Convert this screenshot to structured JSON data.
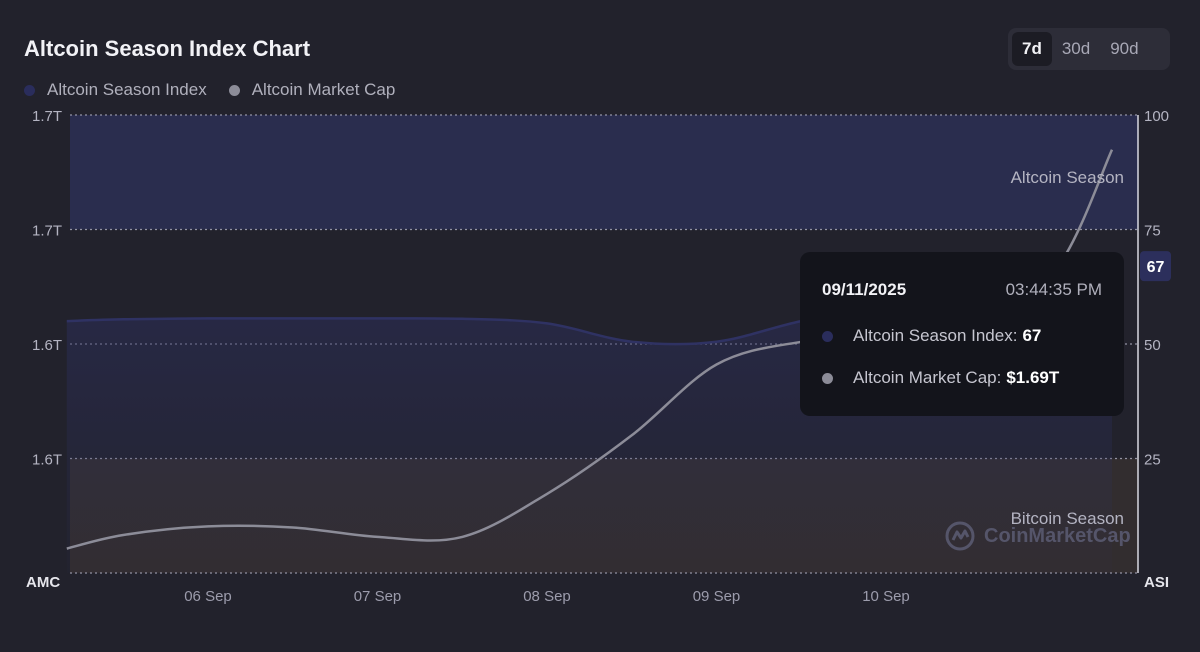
{
  "title": "Altcoin Season Index Chart",
  "range_tabs": [
    {
      "label": "7d",
      "active": true
    },
    {
      "label": "30d",
      "active": false
    },
    {
      "label": "90d",
      "active": false
    }
  ],
  "legend": [
    {
      "label": "Altcoin Season Index",
      "color": "#2a2d5c"
    },
    {
      "label": "Altcoin Market Cap",
      "color": "#8c8c98"
    }
  ],
  "tooltip": {
    "date": "09/11/2025",
    "time": "03:44:35 PM",
    "index_label": "Altcoin Season Index:",
    "index_value": "67",
    "cap_label": "Altcoin Market Cap:",
    "cap_value": "$1.69T"
  },
  "watermark": "CoinMarketCap",
  "chart_data": {
    "type": "line",
    "x": [
      "2025-09-05 04:00",
      "2025-09-05 12:00",
      "2025-09-06 00:00",
      "2025-09-06 12:00",
      "2025-09-07 00:00",
      "2025-09-07 12:00",
      "2025-09-08 00:00",
      "2025-09-08 12:00",
      "2025-09-09 00:00",
      "2025-09-09 12:00",
      "2025-09-10 00:00",
      "2025-09-10 12:00",
      "2025-09-11 00:00",
      "2025-09-11 08:00"
    ],
    "x_ticks": [
      "06 Sep",
      "07 Sep",
      "08 Sep",
      "09 Sep",
      "10 Sep"
    ],
    "x_tick_dates": [
      "2025-09-06",
      "2025-09-07",
      "2025-09-08",
      "2025-09-09",
      "2025-09-10"
    ],
    "series": [
      {
        "name": "Altcoin Season Index",
        "axis": "right",
        "color": "#2f3263",
        "values": [
          55,
          55.4,
          55.6,
          55.6,
          55.6,
          55.5,
          54.5,
          50.5,
          50.5,
          55,
          58,
          61,
          64,
          67
        ]
      },
      {
        "name": "Altcoin Market Cap",
        "axis": "left",
        "color": "#8c8c98",
        "values": [
          1.5425,
          1.5474,
          1.5505,
          1.5501,
          1.5467,
          1.5467,
          1.5622,
          1.5833,
          1.6088,
          1.617,
          1.6195,
          1.6226,
          1.6429,
          1.6862
        ]
      }
    ],
    "y_left": {
      "label": "AMC",
      "ticks": [
        "1.7T",
        "1.7T",
        "1.6T",
        "1.6T"
      ],
      "range": [
        1.5337,
        1.6987
      ]
    },
    "y_right": {
      "label": "ASI",
      "ticks": [
        "100",
        "75",
        "50",
        "25"
      ],
      "range": [
        0,
        100
      ]
    },
    "current_value_badge": "67",
    "bands": [
      {
        "label": "Altcoin Season",
        "from": 75,
        "to": 100
      },
      {
        "label": "Bitcoin Season",
        "from": 0,
        "to": 25
      }
    ],
    "grid": true,
    "legend_position": "top-left"
  }
}
